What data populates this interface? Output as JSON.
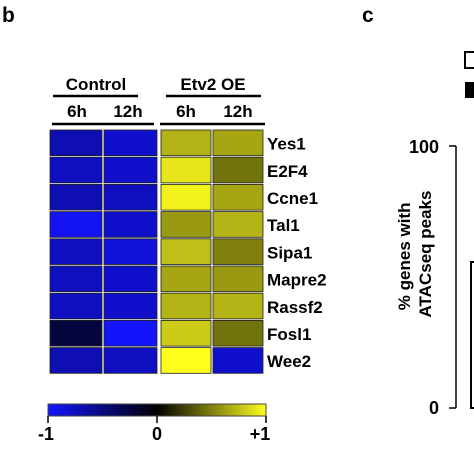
{
  "panels": {
    "left_letter": "b",
    "right_letter": "c"
  },
  "chart_data": [
    {
      "type": "heatmap",
      "groups": [
        {
          "name": "Control",
          "columns": [
            "6h",
            "12h"
          ]
        },
        {
          "name": "Etv2 OE",
          "columns": [
            "6h",
            "12h"
          ]
        }
      ],
      "rows": [
        "Yes1",
        "E2F4",
        "Ccne1",
        "Tal1",
        "Sipa1",
        "Mapre2",
        "Rassf2",
        "Fosl1",
        "Wee2"
      ],
      "values": [
        [
          -0.7,
          -0.8,
          0.7,
          0.65
        ],
        [
          -0.75,
          -0.8,
          0.9,
          0.45
        ],
        [
          -0.7,
          -0.75,
          0.95,
          0.65
        ],
        [
          -0.95,
          -0.8,
          0.6,
          0.7
        ],
        [
          -0.75,
          -0.85,
          0.75,
          0.5
        ],
        [
          -0.75,
          -0.8,
          0.65,
          0.6
        ],
        [
          -0.75,
          -0.8,
          0.7,
          0.7
        ],
        [
          -0.25,
          -0.98,
          0.8,
          0.45
        ],
        [
          -0.7,
          -0.75,
          1.0,
          -0.8
        ]
      ],
      "colorbar": {
        "min": -1,
        "mid": 0,
        "max": 1,
        "tick_labels": [
          "-1",
          "0",
          "+1"
        ],
        "colors": {
          "low": "#1414ff",
          "mid": "#000000",
          "high": "#ffff1e"
        }
      }
    },
    {
      "type": "bar",
      "ylabel": "% genes with ATACseq peaks",
      "ylim": [
        0,
        100
      ],
      "y_tick_labels": [
        "0",
        "100"
      ]
    }
  ]
}
